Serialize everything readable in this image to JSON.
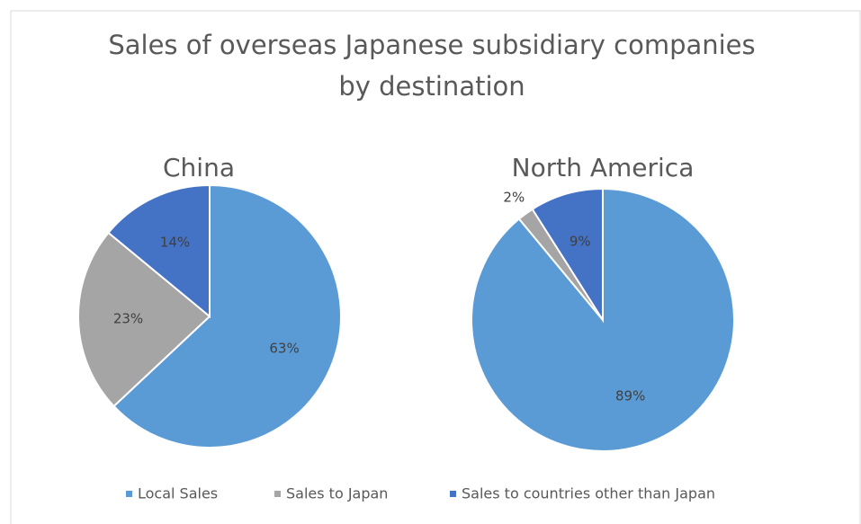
{
  "title": [
    "Sales of overseas Japanese subsidiary companies",
    "by destination"
  ],
  "chart_data": [
    {
      "type": "pie",
      "title": "China",
      "categories": [
        "Local Sales",
        "Sales to Japan",
        "Sales to countries other than Japan"
      ],
      "values": [
        63,
        23,
        14
      ],
      "value_labels": [
        "63%",
        "23%",
        "14%"
      ],
      "colors": [
        "#5b9bd5",
        "#a5a5a5",
        "#4472c4"
      ]
    },
    {
      "type": "pie",
      "title": "North America",
      "categories": [
        "Local Sales",
        "Sales to Japan",
        "Sales to countries other than Japan"
      ],
      "values": [
        89,
        2,
        9
      ],
      "value_labels": [
        "89%",
        "2%",
        "9%"
      ],
      "colors": [
        "#5b9bd5",
        "#a5a5a5",
        "#4472c4"
      ]
    }
  ]
}
